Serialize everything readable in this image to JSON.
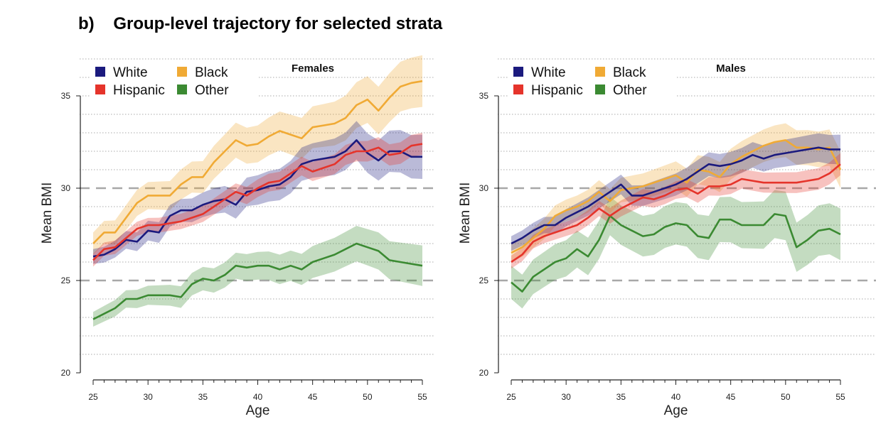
{
  "figure_title": "b)    Group-level trajectory for selected strata",
  "chart_data": [
    {
      "type": "line",
      "title": "Females",
      "xlabel": "Age",
      "ylabel": "Mean BMI",
      "xlim": [
        25,
        55
      ],
      "ylim": [
        20,
        37
      ],
      "xticks": [
        25,
        30,
        35,
        40,
        45,
        50,
        55
      ],
      "yticks": [
        20,
        25,
        30,
        35
      ],
      "reference_lines": [
        25,
        30
      ],
      "grid": "dotted horizontal",
      "legend_position": "top-left",
      "x": [
        25,
        26,
        27,
        28,
        29,
        30,
        31,
        32,
        33,
        34,
        35,
        36,
        37,
        38,
        39,
        40,
        41,
        42,
        43,
        44,
        45,
        46,
        47,
        48,
        49,
        50,
        51,
        52,
        53,
        54,
        55
      ],
      "series": [
        {
          "name": "White",
          "color": "#1b1a7e",
          "ci": [
            0.4,
            1.2
          ],
          "values": [
            26.3,
            26.4,
            26.7,
            27.2,
            27.1,
            27.7,
            27.6,
            28.5,
            28.8,
            28.8,
            29.1,
            29.3,
            29.4,
            29.1,
            29.8,
            29.9,
            30.1,
            30.2,
            30.6,
            31.3,
            31.5,
            31.6,
            31.7,
            32.0,
            32.6,
            31.9,
            31.5,
            32.0,
            32.0,
            31.7,
            31.7
          ]
        },
        {
          "name": "Black",
          "color": "#f0aa35",
          "ci": [
            0.6,
            1.4
          ],
          "values": [
            27.0,
            27.6,
            27.6,
            28.4,
            29.2,
            29.6,
            29.6,
            29.6,
            30.2,
            30.6,
            30.6,
            31.4,
            32.0,
            32.6,
            32.3,
            32.4,
            32.8,
            33.1,
            32.9,
            32.7,
            33.3,
            33.4,
            33.5,
            33.8,
            34.5,
            34.8,
            34.2,
            34.9,
            35.5,
            35.7,
            35.8
          ]
        },
        {
          "name": "Hispanic",
          "color": "#e5342b",
          "ci": [
            0.35,
            0.6
          ],
          "values": [
            26.1,
            26.7,
            26.8,
            27.3,
            27.8,
            28.0,
            28.0,
            28.1,
            28.2,
            28.4,
            28.6,
            29.0,
            29.4,
            29.8,
            29.6,
            30.0,
            30.3,
            30.4,
            30.8,
            31.2,
            30.9,
            31.1,
            31.3,
            31.8,
            32.0,
            32.0,
            32.2,
            31.8,
            31.9,
            32.3,
            32.4
          ]
        },
        {
          "name": "Other",
          "color": "#3b8a32",
          "ci": [
            0.4,
            1.1
          ],
          "values": [
            22.9,
            23.2,
            23.5,
            24.0,
            24.0,
            24.2,
            24.2,
            24.2,
            24.1,
            24.8,
            25.1,
            25.0,
            25.3,
            25.8,
            25.7,
            25.8,
            25.8,
            25.6,
            25.8,
            25.6,
            26.0,
            26.2,
            26.4,
            26.7,
            27.0,
            26.8,
            26.6,
            26.1,
            26.0,
            25.9,
            25.8
          ]
        }
      ]
    },
    {
      "type": "line",
      "title": "Males",
      "xlabel": "Age",
      "ylabel": "Mean BMI",
      "xlim": [
        25,
        55
      ],
      "ylim": [
        20,
        37
      ],
      "xticks": [
        25,
        30,
        35,
        40,
        45,
        50,
        55
      ],
      "yticks": [
        20,
        25,
        30,
        35
      ],
      "reference_lines": [
        25,
        30
      ],
      "grid": "dotted horizontal",
      "legend_position": "top-left",
      "x": [
        25,
        26,
        27,
        28,
        29,
        30,
        31,
        32,
        33,
        34,
        35,
        36,
        37,
        38,
        39,
        40,
        41,
        42,
        43,
        44,
        45,
        46,
        47,
        48,
        49,
        50,
        51,
        52,
        53,
        54,
        55
      ],
      "series": [
        {
          "name": "White",
          "color": "#1b1a7e",
          "ci": [
            0.4,
            0.8
          ],
          "values": [
            27.0,
            27.3,
            27.7,
            28.0,
            28.0,
            28.4,
            28.7,
            29.0,
            29.4,
            29.8,
            30.2,
            29.6,
            29.6,
            29.8,
            30.0,
            30.2,
            30.5,
            30.9,
            31.3,
            31.2,
            31.3,
            31.5,
            31.8,
            31.6,
            31.8,
            31.9,
            32.0,
            32.1,
            32.2,
            32.1,
            32.1
          ]
        },
        {
          "name": "Black",
          "color": "#f0aa35",
          "ci": [
            0.5,
            1.0
          ],
          "values": [
            26.5,
            26.8,
            27.3,
            27.8,
            28.5,
            28.8,
            29.0,
            29.3,
            29.8,
            29.3,
            29.9,
            30.0,
            30.1,
            30.3,
            30.5,
            30.7,
            30.3,
            31.0,
            30.9,
            30.6,
            31.3,
            31.7,
            32.0,
            32.3,
            32.5,
            32.6,
            32.2,
            32.2,
            32.1,
            32.2,
            31.0
          ]
        },
        {
          "name": "Hispanic",
          "color": "#e5342b",
          "ci": [
            0.35,
            0.6
          ],
          "values": [
            26.0,
            26.4,
            27.1,
            27.4,
            27.6,
            27.8,
            28.0,
            28.4,
            28.9,
            28.5,
            28.9,
            29.2,
            29.5,
            29.4,
            29.6,
            29.9,
            30.0,
            29.7,
            30.1,
            30.1,
            30.2,
            30.5,
            30.4,
            30.3,
            30.3,
            30.3,
            30.3,
            30.4,
            30.5,
            30.8,
            31.3
          ]
        },
        {
          "name": "Other",
          "color": "#3b8a32",
          "ci": [
            0.9,
            1.4
          ],
          "values": [
            24.9,
            24.4,
            25.2,
            25.6,
            26.0,
            26.2,
            26.7,
            26.3,
            27.2,
            28.5,
            28.0,
            27.7,
            27.4,
            27.5,
            27.9,
            28.1,
            28.0,
            27.4,
            27.3,
            28.3,
            28.3,
            28.0,
            28.0,
            28.0,
            28.6,
            28.5,
            26.8,
            27.2,
            27.7,
            27.8,
            27.5
          ]
        }
      ]
    }
  ]
}
